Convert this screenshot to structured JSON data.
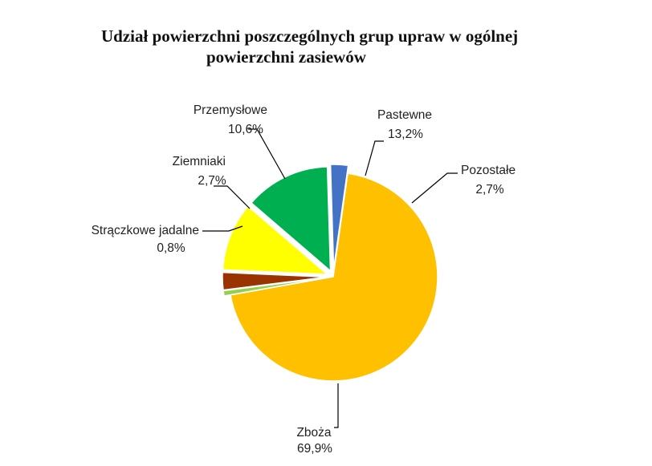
{
  "chart_data": {
    "type": "pie",
    "title_line1": "Udział powierzchni poszczególnych grup upraw w ogólnej",
    "title_line2": "powierzchni zasiewów",
    "slices": [
      {
        "name": "Zboża",
        "value": 69.9,
        "label": "69,9%",
        "color": "#FFC000"
      },
      {
        "name": "Strączkowe jadalne",
        "value": 0.8,
        "label": "0,8%",
        "color": "#92D050"
      },
      {
        "name": "Ziemniaki",
        "value": 2.7,
        "label": "2,7%",
        "color": "#993300"
      },
      {
        "name": "Przemysłowe",
        "value": 10.6,
        "label": "10,6%",
        "color": "#FFFF00"
      },
      {
        "name": "Pastewne",
        "value": 13.2,
        "label": "13,2%",
        "color": "#00B050"
      },
      {
        "name": "Pozostałe",
        "value": 2.7,
        "label": "2,7%",
        "color": "#4472C4"
      }
    ],
    "legend": "none",
    "data_labels": "outside with leader lines"
  }
}
